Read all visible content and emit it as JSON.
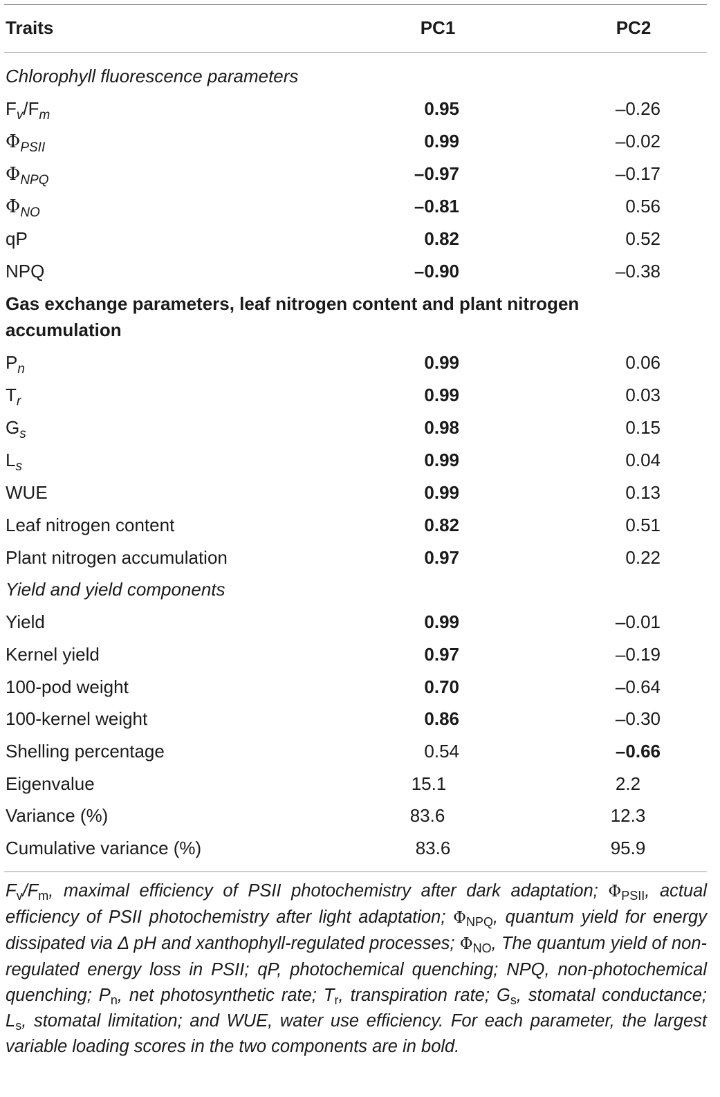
{
  "header": {
    "col_traits": "Traits",
    "col_pc1": "PC1",
    "col_pc2": "PC2"
  },
  "sections": {
    "chlorophyll": "Chlorophyll fluorescence parameters",
    "gas_exchange": "Gas exchange parameters, leaf nitrogen content and plant nitrogen accumulation",
    "yield": "Yield and yield components"
  },
  "rows": {
    "fvfm": {
      "pc1": "0.95",
      "pc2": "–0.26"
    },
    "phipsii": {
      "pc1": "0.99",
      "pc2": "–0.02"
    },
    "phinpq": {
      "pc1": "–0.97",
      "pc2": "–0.17"
    },
    "phino": {
      "pc1": "–0.81",
      "pc2": "0.56"
    },
    "qp": {
      "label": "qP",
      "pc1": "0.82",
      "pc2": "0.52"
    },
    "npq": {
      "label": "NPQ",
      "pc1": "–0.90",
      "pc2": "–0.38"
    },
    "pn": {
      "pc1": "0.99",
      "pc2": "0.06"
    },
    "tr": {
      "pc1": "0.99",
      "pc2": "0.03"
    },
    "gs": {
      "pc1": "0.98",
      "pc2": "0.15"
    },
    "ls": {
      "pc1": "0.99",
      "pc2": "0.04"
    },
    "wue": {
      "label": "WUE",
      "pc1": "0.99",
      "pc2": "0.13"
    },
    "leafn": {
      "label": "Leaf nitrogen content",
      "pc1": "0.82",
      "pc2": "0.51"
    },
    "plantn": {
      "label": "Plant nitrogen accumulation",
      "pc1": "0.97",
      "pc2": "0.22"
    },
    "yield": {
      "label": "Yield",
      "pc1": "0.99",
      "pc2": "–0.01"
    },
    "kernel": {
      "label": "Kernel yield",
      "pc1": "0.97",
      "pc2": "–0.19"
    },
    "pod100": {
      "label": "100-pod weight",
      "pc1": "0.70",
      "pc2": "–0.64"
    },
    "kernel100": {
      "label": "100-kernel weight",
      "pc1": "0.86",
      "pc2": "–0.30"
    },
    "shelling": {
      "label": "Shelling percentage",
      "pc1": "0.54",
      "pc2": "–0.66"
    },
    "eigen": {
      "label": "Eigenvalue",
      "pc1": "15.1",
      "pc2": "2.2"
    },
    "variance": {
      "label": "Variance (%)",
      "pc1": "83.6",
      "pc2": "12.3"
    },
    "cumvar": {
      "label": "Cumulative variance (%)",
      "pc1": "83.6",
      "pc2": "95.9"
    }
  },
  "symbols": {
    "F": "F",
    "v": "v",
    "m": "m",
    "slash": "/",
    "phi": "Φ",
    "psii": "PSII",
    "npq": "NPQ",
    "no": "NO",
    "P": "P",
    "n": "n",
    "T": "T",
    "r": "r",
    "G": "G",
    "s": "s",
    "L": "L"
  },
  "footnote": {
    "s1": ", maximal efficiency of PSII photochemistry after dark adaptation; ",
    "s2": ", actual efficiency of PSII photochemistry after light adaptation; ",
    "s3": ", quantum yield for energy dissipated via Δ pH and xanthophyll-regulated processes; ",
    "s4": ", The quantum yield of non-regulated energy loss in PSII; qP, photochemical quenching; NPQ, non-photochemical quenching; ",
    "s5": ", net photosynthetic rate; ",
    "s6": ", transpiration rate; ",
    "s7": ", stomatal conductance; ",
    "s8": ", stomatal limitation; and WUE, water use efficiency. For each parameter, the largest variable loading scores in the two components are in bold."
  }
}
